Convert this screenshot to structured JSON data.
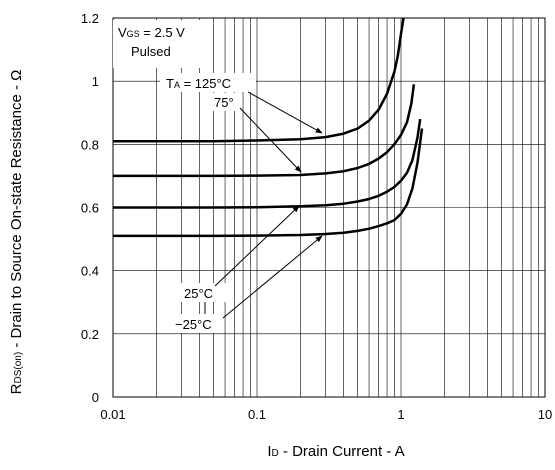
{
  "chart_data": {
    "type": "line",
    "xlabel": {
      "main": "I",
      "sub": "D",
      "rest": " - Drain Current - A"
    },
    "ylabel": {
      "main": "R",
      "sub": "DS(on)",
      "rest": " - Drain to Source On-state Resistance - Ω"
    },
    "x_scale": "log",
    "xlim": [
      0.01,
      10
    ],
    "ylim": [
      0,
      1.2
    ],
    "x_ticks": [
      0.01,
      0.1,
      1,
      10
    ],
    "x_tick_labels": [
      "0.01",
      "0.1",
      "1",
      "10"
    ],
    "y_ticks": [
      0,
      0.2,
      0.4,
      0.6,
      0.8,
      1,
      1.2
    ],
    "y_tick_labels": [
      "0",
      "0.2",
      "0.4",
      "0.6",
      "0.8",
      "1",
      "1.2"
    ],
    "grid": true,
    "conditions": {
      "vgs_main": "V",
      "vgs_sub": "GS",
      "vgs_rest": " = 2.5 V",
      "pulsed": "Pulsed"
    },
    "series": [
      {
        "name": "125°C",
        "x": [
          0.01,
          0.05,
          0.1,
          0.2,
          0.3,
          0.4,
          0.5,
          0.6,
          0.7,
          0.8,
          0.9,
          0.95,
          1.0,
          1.04
        ],
        "y": [
          0.81,
          0.81,
          0.812,
          0.816,
          0.823,
          0.834,
          0.85,
          0.875,
          0.91,
          0.96,
          1.03,
          1.08,
          1.15,
          1.2
        ]
      },
      {
        "name": "75°",
        "x": [
          0.01,
          0.05,
          0.1,
          0.2,
          0.3,
          0.4,
          0.5,
          0.6,
          0.7,
          0.8,
          0.9,
          1.0,
          1.1,
          1.18,
          1.23
        ],
        "y": [
          0.7,
          0.7,
          0.701,
          0.703,
          0.708,
          0.715,
          0.725,
          0.738,
          0.755,
          0.775,
          0.8,
          0.83,
          0.87,
          0.93,
          0.99
        ]
      },
      {
        "name": "25°C",
        "x": [
          0.01,
          0.05,
          0.1,
          0.2,
          0.3,
          0.4,
          0.5,
          0.6,
          0.7,
          0.8,
          0.9,
          1.0,
          1.1,
          1.2,
          1.3,
          1.36
        ],
        "y": [
          0.6,
          0.6,
          0.601,
          0.604,
          0.607,
          0.612,
          0.619,
          0.627,
          0.637,
          0.65,
          0.665,
          0.685,
          0.71,
          0.75,
          0.82,
          0.88
        ]
      },
      {
        "name": "−25°C",
        "x": [
          0.01,
          0.05,
          0.1,
          0.2,
          0.3,
          0.4,
          0.5,
          0.6,
          0.7,
          0.8,
          0.9,
          1.0,
          1.1,
          1.2,
          1.3,
          1.4
        ],
        "y": [
          0.51,
          0.51,
          0.511,
          0.513,
          0.516,
          0.52,
          0.526,
          0.533,
          0.541,
          0.55,
          0.56,
          0.58,
          0.61,
          0.66,
          0.74,
          0.85
        ]
      }
    ],
    "annotations": {
      "ta_prefix_main": "T",
      "ta_prefix_sub": "A",
      "ta_prefix_rest": " = ",
      "label_125": "125°C",
      "label_75": "75°",
      "label_25": "25°C",
      "label_m25": "−25°C"
    }
  }
}
